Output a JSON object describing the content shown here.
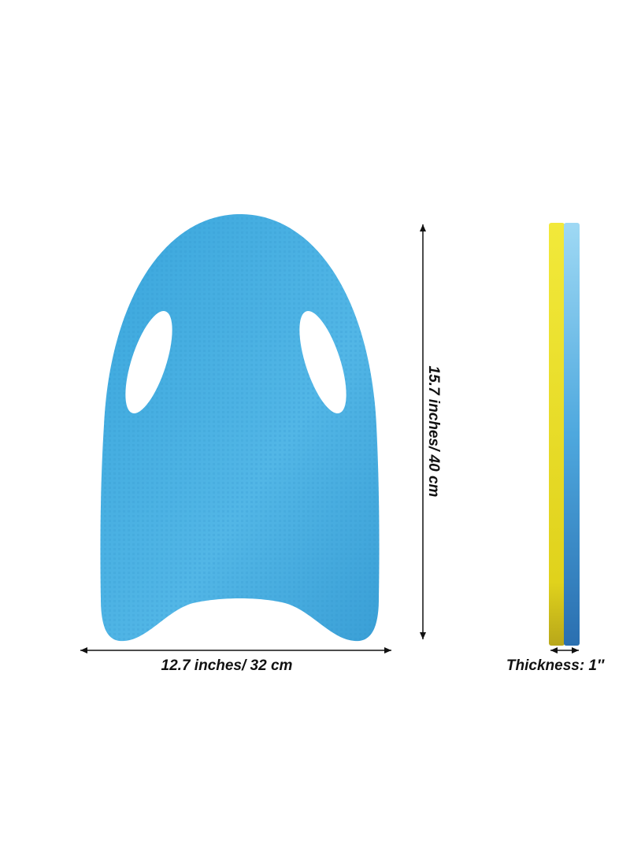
{
  "height_label": "15.7 inches/ 40 cm",
  "width_label": "12.7 inches/ 32 cm",
  "thickness_label": "Thickness: 1″"
}
